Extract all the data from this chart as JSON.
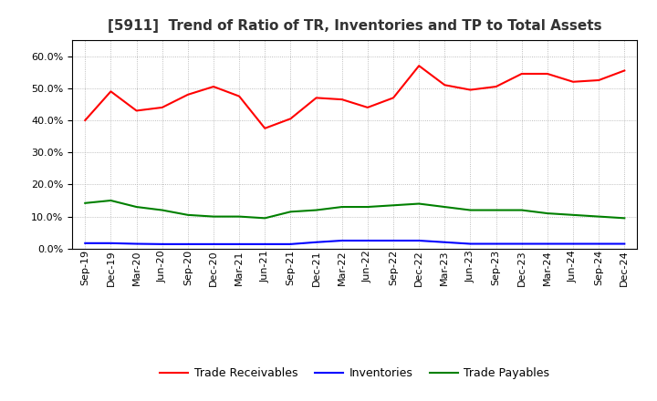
{
  "title": "[5911]  Trend of Ratio of TR, Inventories and TP to Total Assets",
  "labels": [
    "Sep-19",
    "Dec-19",
    "Mar-20",
    "Jun-20",
    "Sep-20",
    "Dec-20",
    "Mar-21",
    "Jun-21",
    "Sep-21",
    "Dec-21",
    "Mar-22",
    "Jun-22",
    "Sep-22",
    "Dec-22",
    "Mar-23",
    "Jun-23",
    "Sep-23",
    "Dec-23",
    "Mar-24",
    "Jun-24",
    "Sep-24",
    "Dec-24"
  ],
  "trade_receivables": [
    0.4,
    0.49,
    0.43,
    0.44,
    0.48,
    0.505,
    0.475,
    0.375,
    0.405,
    0.47,
    0.465,
    0.44,
    0.47,
    0.57,
    0.51,
    0.495,
    0.505,
    0.545,
    0.545,
    0.52,
    0.525,
    0.555
  ],
  "inventories": [
    0.017,
    0.017,
    0.015,
    0.014,
    0.014,
    0.014,
    0.014,
    0.014,
    0.014,
    0.02,
    0.025,
    0.025,
    0.025,
    0.025,
    0.02,
    0.015,
    0.015,
    0.015,
    0.015,
    0.015,
    0.015,
    0.015
  ],
  "trade_payables": [
    0.142,
    0.15,
    0.13,
    0.12,
    0.105,
    0.1,
    0.1,
    0.095,
    0.115,
    0.12,
    0.13,
    0.13,
    0.135,
    0.14,
    0.13,
    0.12,
    0.12,
    0.12,
    0.11,
    0.105,
    0.1,
    0.095
  ],
  "tr_color": "#ff0000",
  "inv_color": "#0000ff",
  "tp_color": "#008000",
  "bg_color": "#ffffff",
  "grid_color": "#aaaaaa",
  "ylim": [
    0.0,
    0.65
  ],
  "yticks": [
    0.0,
    0.1,
    0.2,
    0.3,
    0.4,
    0.5,
    0.6
  ],
  "legend_labels": [
    "Trade Receivables",
    "Inventories",
    "Trade Payables"
  ],
  "title_fontsize": 11,
  "tick_fontsize": 8,
  "legend_fontsize": 9
}
